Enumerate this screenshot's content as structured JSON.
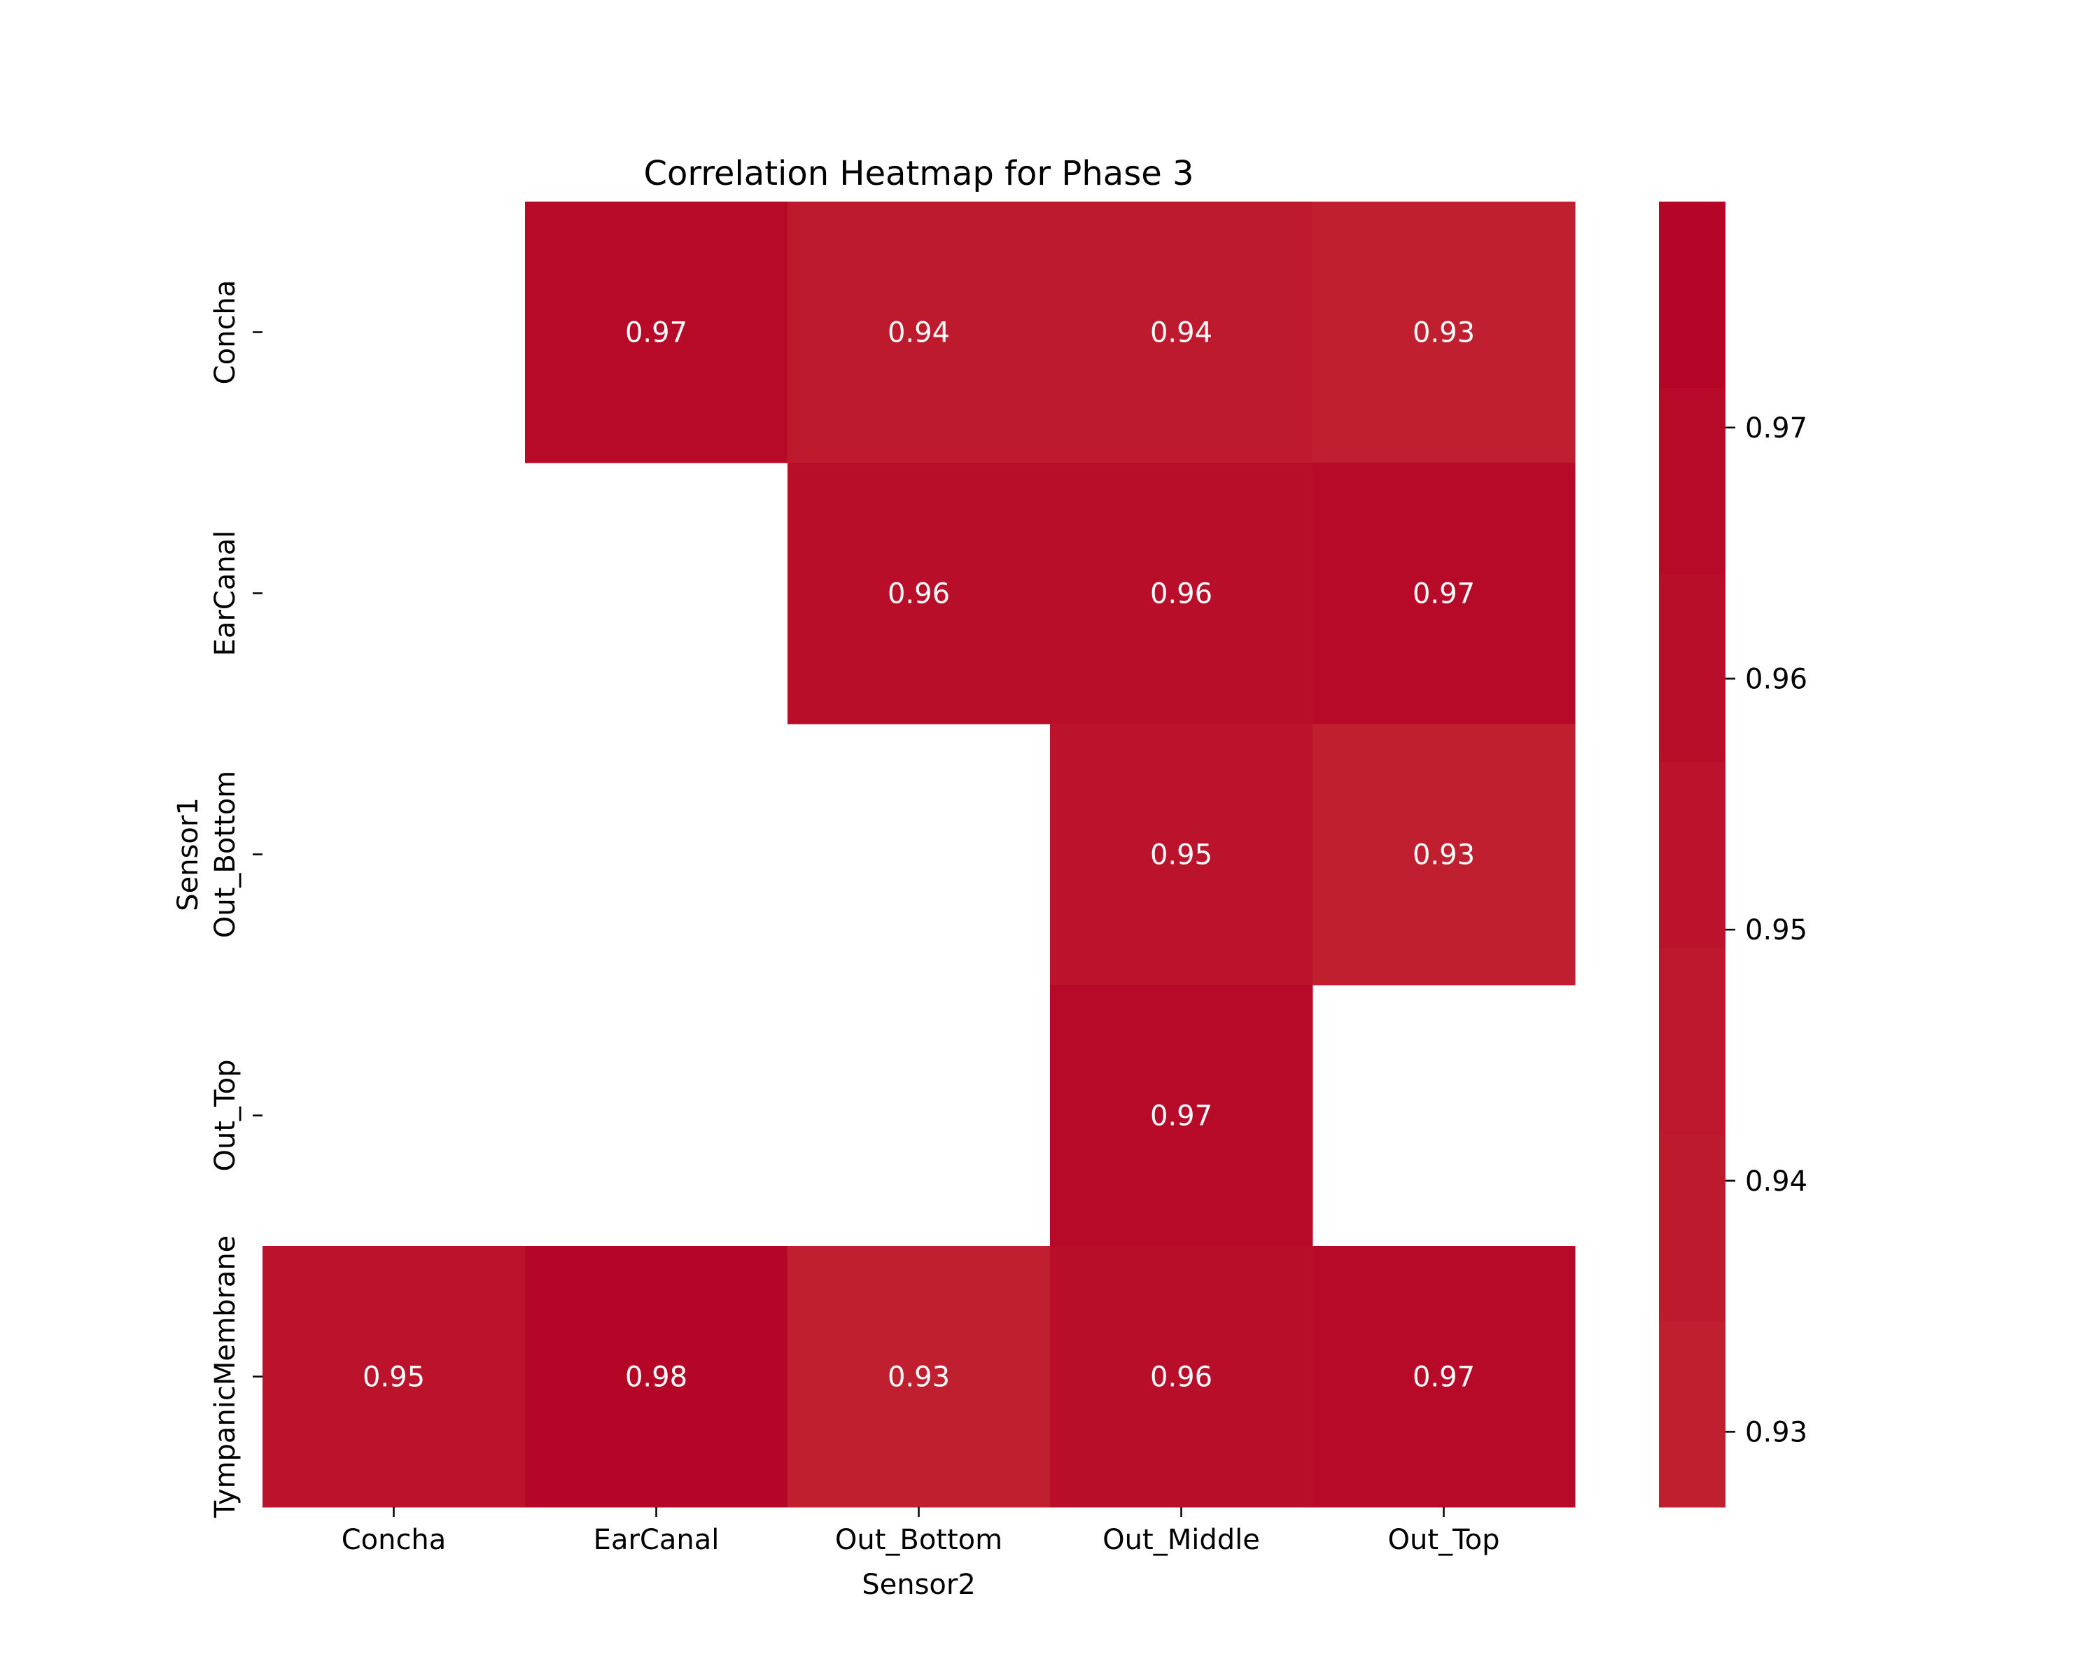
{
  "chart_data": {
    "type": "heatmap",
    "title": "Correlation Heatmap for Phase 3",
    "xlabel": "Sensor2",
    "ylabel": "Sensor1",
    "x_categories": [
      "Concha",
      "EarCanal",
      "Out_Bottom",
      "Out_Middle",
      "Out_Top"
    ],
    "y_categories": [
      "Concha",
      "EarCanal",
      "Out_Bottom",
      "Out_Top",
      "TympanicMembrane"
    ],
    "values": [
      [
        null,
        0.97,
        0.94,
        0.94,
        0.93
      ],
      [
        null,
        null,
        0.96,
        0.96,
        0.97
      ],
      [
        null,
        null,
        null,
        0.95,
        0.93
      ],
      [
        null,
        null,
        null,
        0.97,
        null
      ],
      [
        0.95,
        0.98,
        0.93,
        0.96,
        0.97
      ]
    ],
    "value_labels": [
      [
        null,
        "0.97",
        "0.94",
        "0.94",
        "0.93"
      ],
      [
        null,
        null,
        "0.96",
        "0.96",
        "0.97"
      ],
      [
        null,
        null,
        null,
        "0.95",
        "0.93"
      ],
      [
        null,
        null,
        null,
        "0.97",
        null
      ],
      [
        "0.95",
        "0.98",
        "0.93",
        "0.96",
        "0.97"
      ]
    ],
    "colorbar": {
      "range": [
        0.927,
        0.979
      ],
      "ticks": [
        "0.93",
        "0.94",
        "0.95",
        "0.96",
        "0.97"
      ],
      "tick_values": [
        0.93,
        0.94,
        0.95,
        0.96,
        0.97
      ],
      "bins": 7,
      "color_low": "#c0212f",
      "color_high": "#b40426"
    }
  }
}
